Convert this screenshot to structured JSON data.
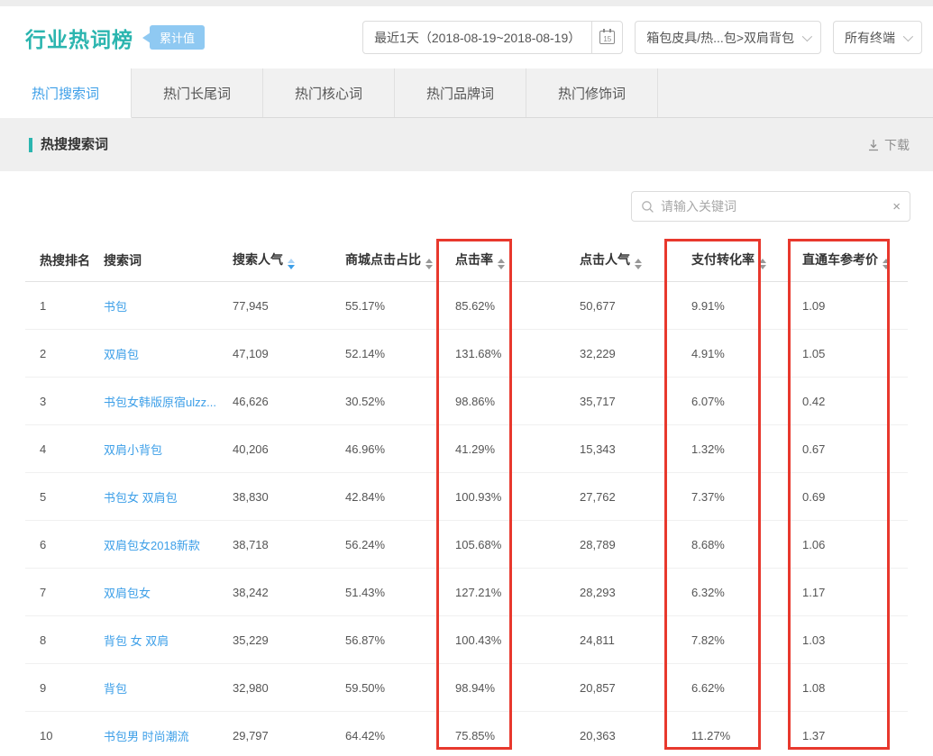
{
  "header": {
    "title": "行业热词榜",
    "badge": "累计值",
    "date_range": "最近1天（2018-08-19~2018-08-19）",
    "calendar_day": "15",
    "category": "箱包皮具/热...包>双肩背包",
    "terminal": "所有终端"
  },
  "tabs": [
    {
      "id": "tab-hot-search-terms",
      "label": "热门搜索词",
      "active": true
    },
    {
      "id": "tab-hot-longtail-terms",
      "label": "热门长尾词",
      "active": false
    },
    {
      "id": "tab-hot-core-terms",
      "label": "热门核心词",
      "active": false
    },
    {
      "id": "tab-hot-brand-terms",
      "label": "热门品牌词",
      "active": false
    },
    {
      "id": "tab-hot-modifier-terms",
      "label": "热门修饰词",
      "active": false
    }
  ],
  "section": {
    "title": "热搜搜索词",
    "download_label": "下载"
  },
  "search": {
    "placeholder": "请输入关键词",
    "clear_icon": "×"
  },
  "table": {
    "columns": [
      {
        "id": "rank",
        "label": "热搜排名",
        "sortable": false,
        "highlighted": false
      },
      {
        "id": "keyword",
        "label": "搜索词",
        "sortable": false,
        "highlighted": false
      },
      {
        "id": "search-popularity",
        "label": "搜索人气",
        "sortable": true,
        "sort": "desc",
        "highlighted": false
      },
      {
        "id": "mall-click-ratio",
        "label": "商城点击占比",
        "sortable": true,
        "highlighted": false
      },
      {
        "id": "ctr",
        "label": "点击率",
        "sortable": true,
        "highlighted": true
      },
      {
        "id": "click-popularity",
        "label": "点击人气",
        "sortable": true,
        "highlighted": false
      },
      {
        "id": "payment-conversion-rate",
        "label": "支付转化率",
        "sortable": true,
        "highlighted": true
      },
      {
        "id": "ztc-reference-price",
        "label": "直通车参考价",
        "sortable": true,
        "highlighted": true
      }
    ],
    "rows": [
      [
        "1",
        "书包",
        "77,945",
        "55.17%",
        "85.62%",
        "50,677",
        "9.91%",
        "1.09"
      ],
      [
        "2",
        "双肩包",
        "47,109",
        "52.14%",
        "131.68%",
        "32,229",
        "4.91%",
        "1.05"
      ],
      [
        "3",
        "书包女韩版原宿ulzz...",
        "46,626",
        "30.52%",
        "98.86%",
        "35,717",
        "6.07%",
        "0.42"
      ],
      [
        "4",
        "双肩小背包",
        "40,206",
        "46.96%",
        "41.29%",
        "15,343",
        "1.32%",
        "0.67"
      ],
      [
        "5",
        "书包女 双肩包",
        "38,830",
        "42.84%",
        "100.93%",
        "27,762",
        "7.37%",
        "0.69"
      ],
      [
        "6",
        "双肩包女2018新款",
        "38,718",
        "56.24%",
        "105.68%",
        "28,789",
        "8.68%",
        "1.06"
      ],
      [
        "7",
        "双肩包女",
        "38,242",
        "51.43%",
        "127.21%",
        "28,293",
        "6.32%",
        "1.17"
      ],
      [
        "8",
        "背包 女 双肩",
        "35,229",
        "56.87%",
        "100.43%",
        "24,811",
        "7.82%",
        "1.03"
      ],
      [
        "9",
        "背包",
        "32,980",
        "59.50%",
        "98.94%",
        "20,857",
        "6.62%",
        "1.08"
      ],
      [
        "10",
        "书包男 时尚潮流",
        "29,797",
        "64.42%",
        "75.85%",
        "20,363",
        "11.27%",
        "1.37"
      ]
    ]
  },
  "colors": {
    "accent-teal": "#2bb5af",
    "badge-blue": "#8fc9f2",
    "link-blue": "#3d9fe8",
    "highlight-red": "#e8382d"
  }
}
